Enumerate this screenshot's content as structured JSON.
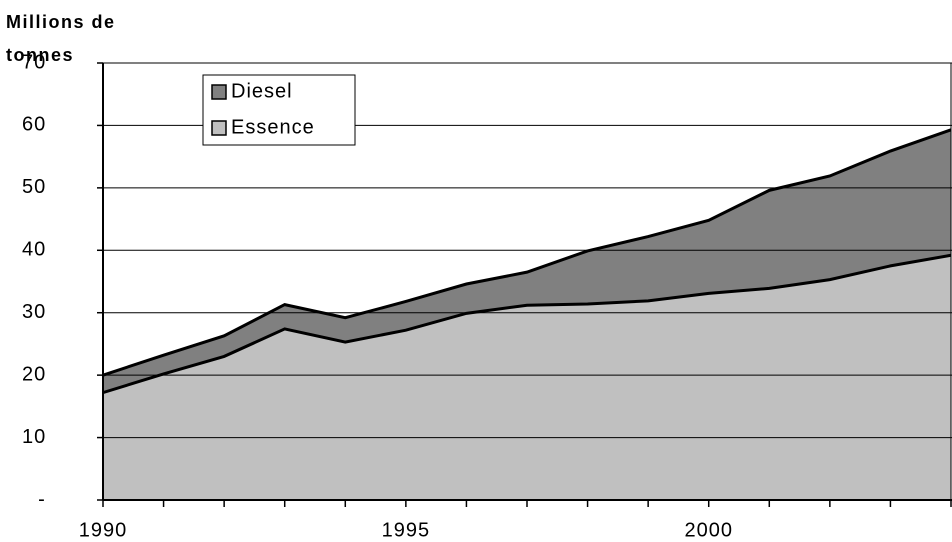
{
  "chart_data": {
    "type": "stacked_area",
    "y_label": "Millions de tonnes",
    "x": [
      1990,
      1991,
      1992,
      1993,
      1994,
      1995,
      1996,
      1997,
      1998,
      1999,
      2000,
      2001,
      2002,
      2003,
      2004
    ],
    "xlim": [
      1990,
      2004
    ],
    "xticks": [
      1990,
      1995,
      2000
    ],
    "ylim": [
      0,
      70
    ],
    "yticks": [
      {
        "value": 0,
        "label": "-"
      },
      10,
      20,
      30,
      40,
      50,
      60,
      70
    ],
    "grid": true,
    "series": [
      {
        "name": "Essence",
        "color": "#c0c0c0",
        "values": [
          17.2,
          20.2,
          23.0,
          27.4,
          25.3,
          27.2,
          29.9,
          31.2,
          31.4,
          31.9,
          33.1,
          33.9,
          35.3,
          37.5,
          39.2
        ]
      },
      {
        "name": "Diesel",
        "color": "#808080",
        "values": [
          2.8,
          3.0,
          3.3,
          3.9,
          3.9,
          4.6,
          4.7,
          5.3,
          8.5,
          10.3,
          11.7,
          15.7,
          16.6,
          18.4,
          20.1
        ]
      }
    ]
  }
}
